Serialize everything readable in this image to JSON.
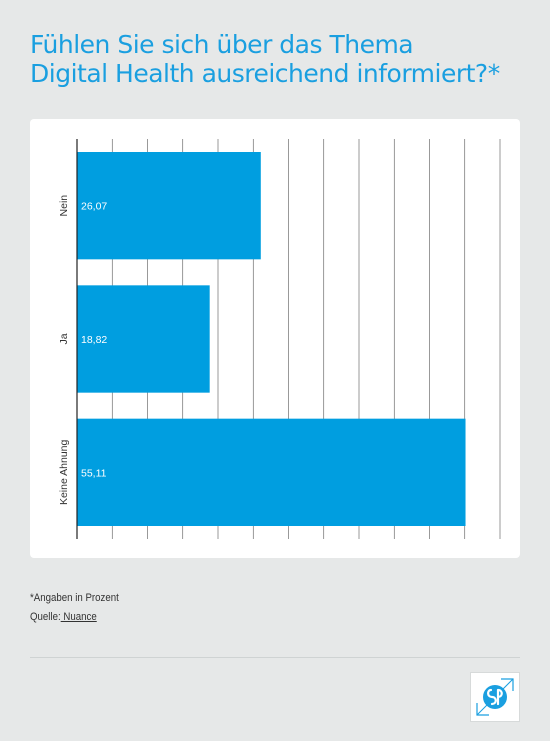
{
  "page": {
    "title_line1": "Fühlen Sie sich über das Thema",
    "title_line2": "Digital Health ausreichend informiert?*",
    "note": "*Angaben in Prozent",
    "source_prefix": "Quelle:",
    "source_name": " Nuance"
  },
  "colors": {
    "bar": "#009ee0",
    "title": "#1a9fe0",
    "background": "#e6e8e8"
  },
  "chart_data": {
    "type": "bar",
    "orientation": "horizontal",
    "categories": [
      "Nein",
      "Ja",
      "Keine Ahnung"
    ],
    "values": [
      26.07,
      18.82,
      55.11
    ],
    "value_labels": [
      "26,07",
      "18,82",
      "55,11"
    ],
    "xlim": [
      0,
      60
    ],
    "grid": true,
    "legend": "none"
  },
  "logo": {
    "icon": "brand-logo-icon"
  }
}
